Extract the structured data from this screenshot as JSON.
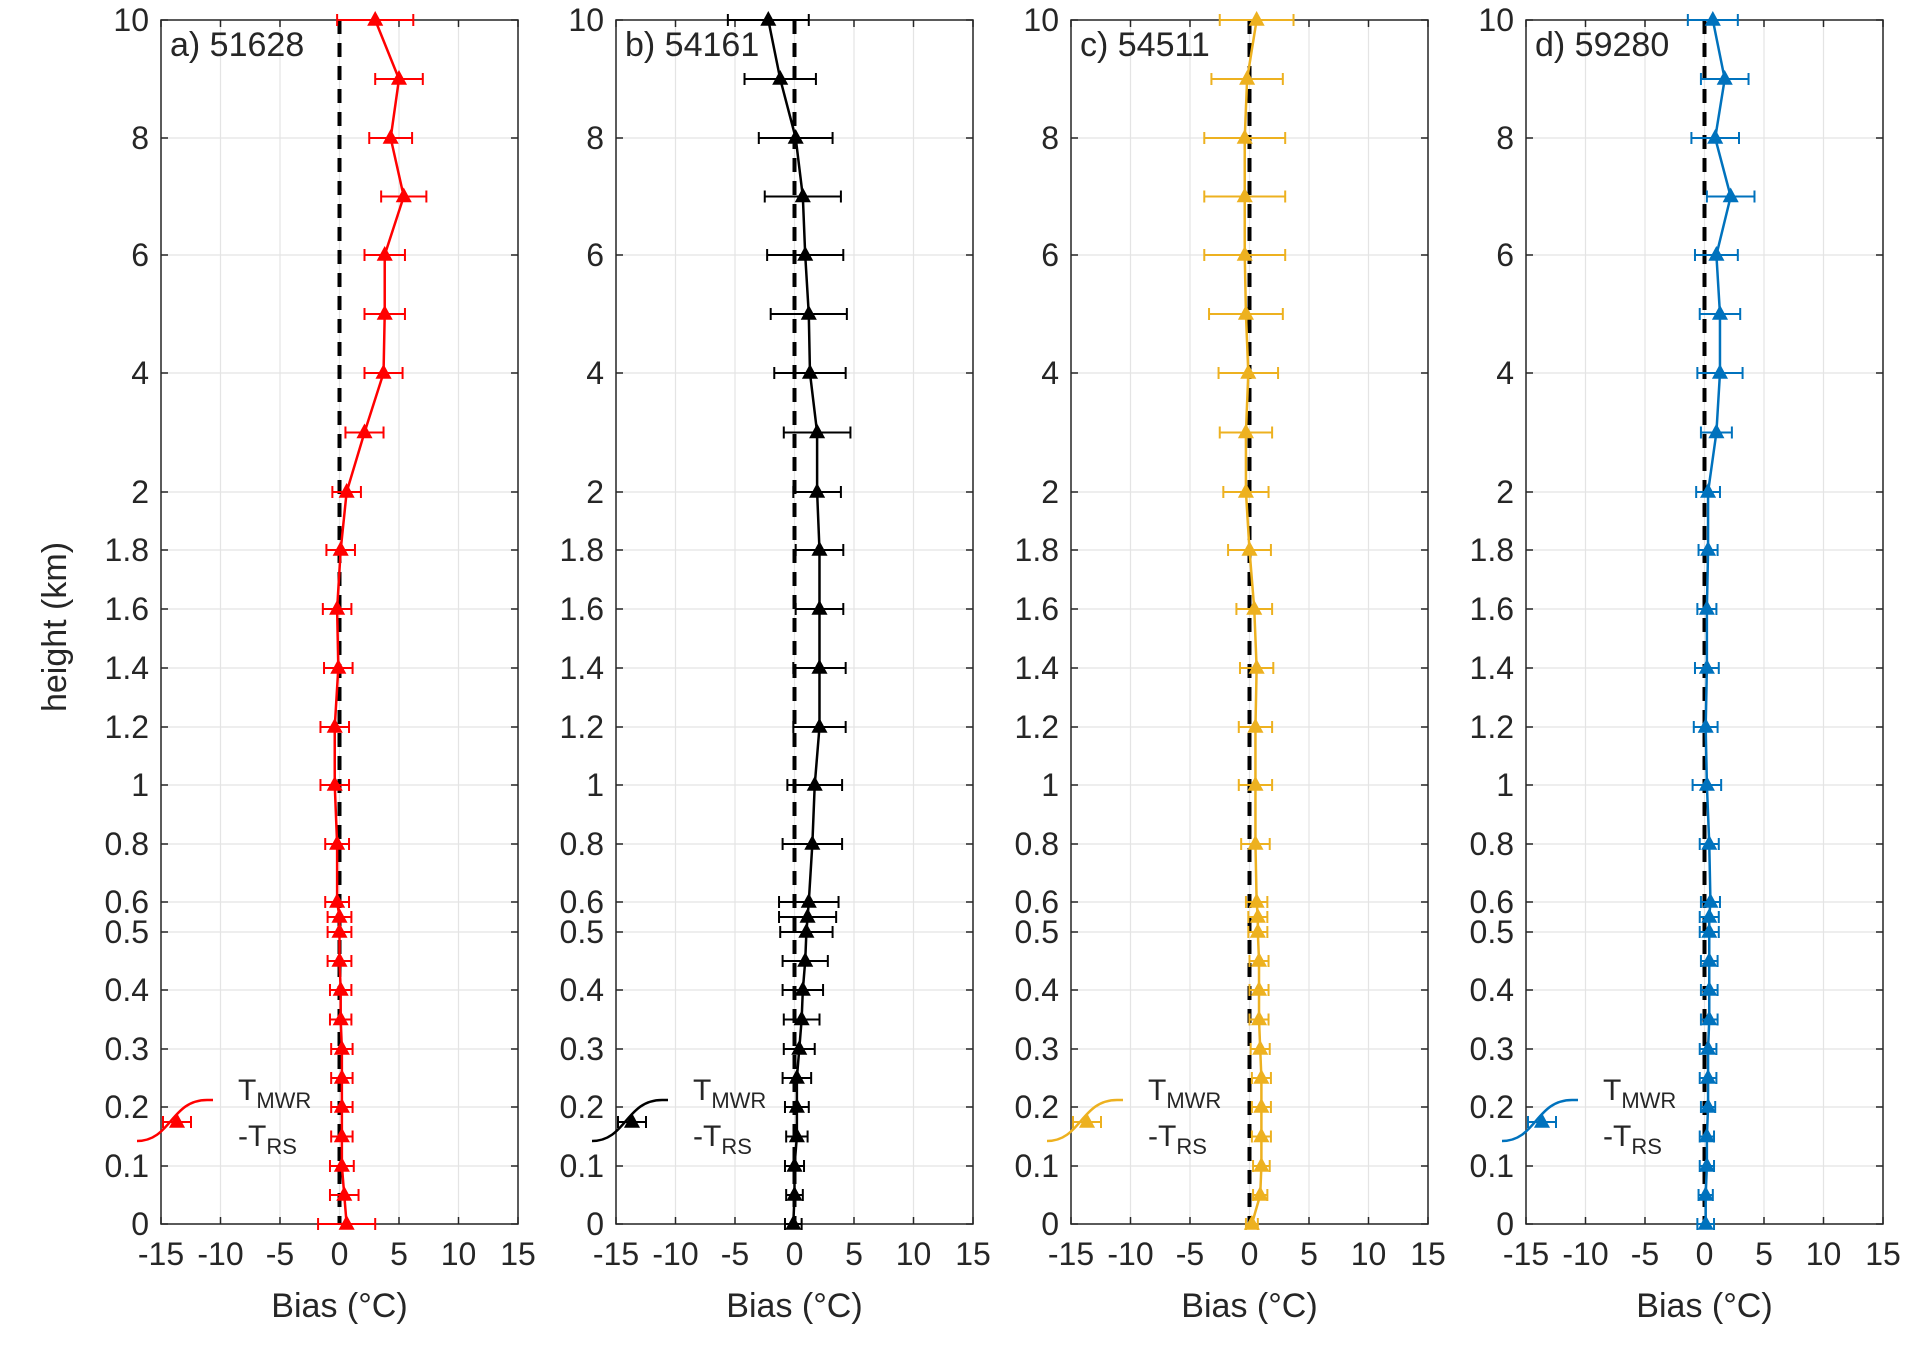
{
  "chart_data": {
    "type": "line",
    "description": "Mean bias profiles T_MWR - T_RS with error bars (standard deviation) at four stations",
    "xlabel": "Bias (°C)",
    "ylabel": "height (km)",
    "xlim": [
      -15,
      15
    ],
    "xticks": [
      -15,
      -10,
      -5,
      0,
      5,
      10,
      15
    ],
    "xtick_labels": [
      "-15",
      "-10",
      "-5",
      "0",
      "5",
      "10",
      "15"
    ],
    "yticks": [
      0,
      0.1,
      0.2,
      0.3,
      0.4,
      0.5,
      0.6,
      0.8,
      1,
      1.2,
      1.4,
      1.6,
      1.8,
      2,
      4,
      6,
      8,
      10
    ],
    "ytick_labels": [
      "0",
      "0.1",
      "0.2",
      "0.3",
      "0.4",
      "0.5",
      "0.6",
      "0.8",
      "1",
      "1.2",
      "1.4",
      "1.6",
      "1.8",
      "2",
      "4",
      "6",
      "8",
      "10"
    ],
    "y_axis_note": "non-uniform (piecewise) height axis",
    "grid": true,
    "reference_line": {
      "x": 0,
      "style": "dashed",
      "color": "#000000"
    },
    "legend": {
      "main": "T",
      "main_sub": "MWR",
      "second": "-T",
      "second_sub": "RS",
      "placement": "bottom-left"
    },
    "panels": [
      {
        "title": "a) 51628",
        "color": "#ff0000",
        "heights": [
          0,
          0.05,
          0.1,
          0.15,
          0.2,
          0.25,
          0.3,
          0.35,
          0.4,
          0.45,
          0.5,
          0.55,
          0.6,
          0.8,
          1,
          1.2,
          1.4,
          1.6,
          1.8,
          2,
          3,
          4,
          5,
          6,
          7,
          8,
          9,
          10
        ],
        "bias": [
          0.6,
          0.4,
          0.2,
          0.2,
          0.2,
          0.2,
          0.2,
          0.1,
          0.1,
          0.0,
          0.0,
          0.0,
          -0.2,
          -0.2,
          -0.4,
          -0.4,
          -0.1,
          -0.2,
          0.1,
          0.6,
          2.1,
          3.7,
          3.8,
          3.8,
          5.4,
          4.3,
          5.0,
          3.0
        ],
        "std": [
          2.4,
          1.2,
          1.0,
          0.9,
          0.9,
          0.9,
          0.9,
          0.9,
          0.9,
          1.0,
          1.0,
          1.0,
          1.0,
          1.0,
          1.2,
          1.2,
          1.2,
          1.2,
          1.2,
          1.2,
          1.6,
          1.6,
          1.7,
          1.7,
          1.9,
          1.8,
          2.0,
          3.2
        ]
      },
      {
        "title": "b) 54161",
        "color": "#000000",
        "heights": [
          0,
          0.05,
          0.1,
          0.15,
          0.2,
          0.25,
          0.3,
          0.35,
          0.4,
          0.45,
          0.5,
          0.55,
          0.6,
          0.8,
          1,
          1.2,
          1.4,
          1.6,
          1.8,
          2,
          3,
          4,
          5,
          6,
          7,
          8,
          9,
          10
        ],
        "bias": [
          -0.1,
          0.0,
          0.0,
          0.2,
          0.2,
          0.2,
          0.4,
          0.6,
          0.7,
          0.9,
          1.0,
          1.1,
          1.2,
          1.5,
          1.7,
          2.1,
          2.1,
          2.1,
          2.1,
          1.9,
          1.9,
          1.3,
          1.2,
          0.9,
          0.7,
          0.1,
          -1.2,
          -2.2
        ],
        "std": [
          0.7,
          0.7,
          0.8,
          0.9,
          1.0,
          1.2,
          1.3,
          1.5,
          1.7,
          1.9,
          2.2,
          2.4,
          2.5,
          2.5,
          2.3,
          2.2,
          2.2,
          2.0,
          2.0,
          2.0,
          2.8,
          3.0,
          3.2,
          3.2,
          3.2,
          3.1,
          3.0,
          3.4
        ]
      },
      {
        "title": "c) 54511",
        "color": "#edb120",
        "heights": [
          0,
          0.05,
          0.1,
          0.15,
          0.2,
          0.25,
          0.3,
          0.35,
          0.4,
          0.45,
          0.5,
          0.55,
          0.6,
          0.8,
          1,
          1.2,
          1.4,
          1.6,
          1.8,
          2,
          3,
          4,
          5,
          6,
          7,
          8,
          9,
          10
        ],
        "bias": [
          0.2,
          0.9,
          1.0,
          1.0,
          1.0,
          1.0,
          0.9,
          0.8,
          0.8,
          0.8,
          0.7,
          0.7,
          0.6,
          0.5,
          0.5,
          0.5,
          0.6,
          0.4,
          0.0,
          -0.3,
          -0.3,
          -0.1,
          -0.3,
          -0.4,
          -0.4,
          -0.4,
          -0.2,
          0.6
        ],
        "std": [
          0.5,
          0.6,
          0.7,
          0.8,
          0.8,
          0.8,
          0.8,
          0.8,
          0.8,
          0.8,
          0.8,
          0.8,
          0.9,
          1.2,
          1.4,
          1.4,
          1.4,
          1.5,
          1.8,
          1.9,
          2.2,
          2.5,
          3.1,
          3.4,
          3.4,
          3.4,
          3.0,
          3.1
        ]
      },
      {
        "title": "d) 59280",
        "color": "#0072bd",
        "heights": [
          0,
          0.05,
          0.1,
          0.15,
          0.2,
          0.25,
          0.3,
          0.35,
          0.4,
          0.45,
          0.5,
          0.55,
          0.6,
          0.8,
          1,
          1.2,
          1.4,
          1.6,
          1.8,
          2,
          3,
          4,
          5,
          6,
          7,
          8,
          9,
          10
        ],
        "bias": [
          0.1,
          0.1,
          0.2,
          0.2,
          0.3,
          0.3,
          0.3,
          0.4,
          0.4,
          0.4,
          0.4,
          0.4,
          0.5,
          0.4,
          0.2,
          0.1,
          0.2,
          0.2,
          0.3,
          0.3,
          1.0,
          1.3,
          1.3,
          1.0,
          2.2,
          0.9,
          1.7,
          0.7
        ],
        "std": [
          0.7,
          0.6,
          0.6,
          0.6,
          0.6,
          0.7,
          0.7,
          0.7,
          0.7,
          0.7,
          0.8,
          0.8,
          0.8,
          0.8,
          1.2,
          1.0,
          1.0,
          0.8,
          0.8,
          1.0,
          1.3,
          1.9,
          1.7,
          1.8,
          2.0,
          2.0,
          2.0,
          2.1
        ]
      }
    ]
  }
}
